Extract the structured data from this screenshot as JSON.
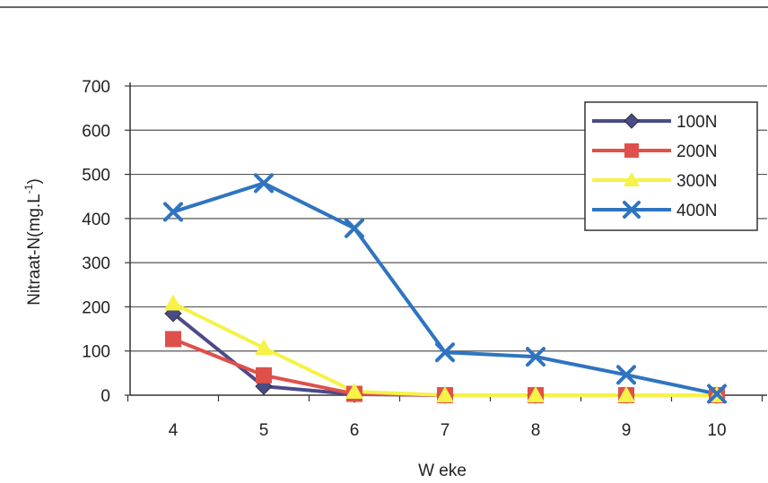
{
  "chart_data": {
    "type": "line",
    "x": [
      4,
      5,
      6,
      7,
      8,
      9,
      10
    ],
    "categories": [
      "4",
      "5",
      "6",
      "7",
      "8",
      "9",
      "10"
    ],
    "xlabel": "W eke",
    "ylabel": "Nitraat-N(mg.L",
    "ylabel_sup": "-1",
    "ylabel_close": ")",
    "ylim": [
      0,
      700
    ],
    "yticks": [
      0,
      100,
      200,
      300,
      400,
      500,
      600,
      700
    ],
    "grid": true,
    "legend_position": "top-right",
    "series": [
      {
        "name": "100N",
        "color": "#4b4b88",
        "marker": "diamond",
        "values": [
          185,
          20,
          2,
          0,
          0,
          0,
          0
        ]
      },
      {
        "name": "200N",
        "color": "#e0504a",
        "marker": "square",
        "values": [
          127,
          45,
          3,
          0,
          0,
          0,
          0
        ]
      },
      {
        "name": "300N",
        "color": "#f6f246",
        "marker": "triangle",
        "values": [
          208,
          107,
          8,
          0,
          0,
          0,
          0
        ]
      },
      {
        "name": "400N",
        "color": "#2f74c0",
        "marker": "x",
        "values": [
          415,
          480,
          378,
          97,
          87,
          46,
          3
        ]
      }
    ]
  }
}
